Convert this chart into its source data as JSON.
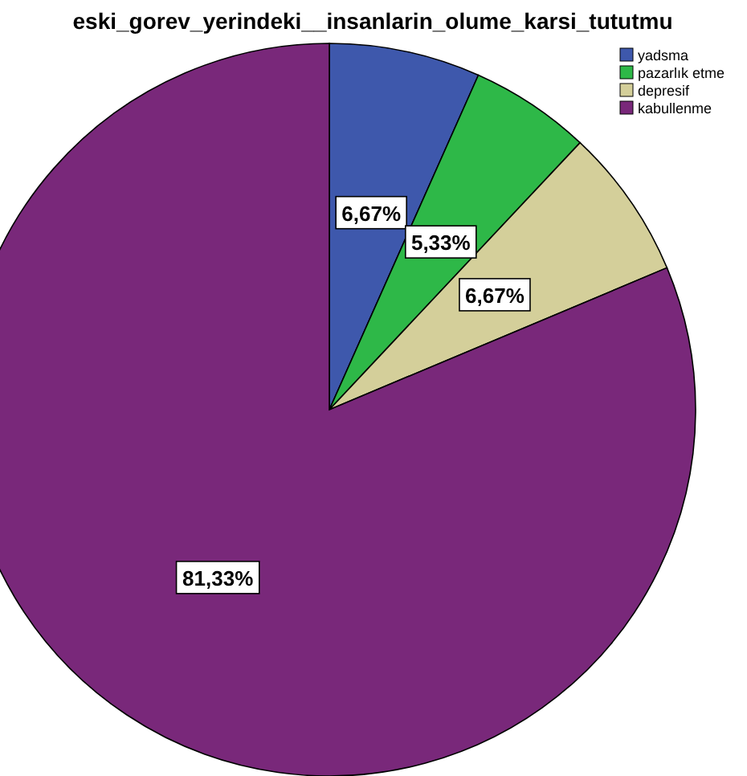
{
  "chart_data": {
    "type": "pie",
    "title": "eski_gorev_yerindeki__insanlarin_olume_karsi_tututmu",
    "categories": [
      "yadsma",
      "pazarlık etme",
      "depresif",
      "kabullenme"
    ],
    "values": [
      6.67,
      5.33,
      6.67,
      81.33
    ],
    "colors": [
      "#3e58ac",
      "#2eb848",
      "#d4cf9a",
      "#79287a"
    ],
    "value_labels": [
      "6,67%",
      "5,33%",
      "6,67%",
      "81,33%"
    ],
    "legend": "top right"
  }
}
